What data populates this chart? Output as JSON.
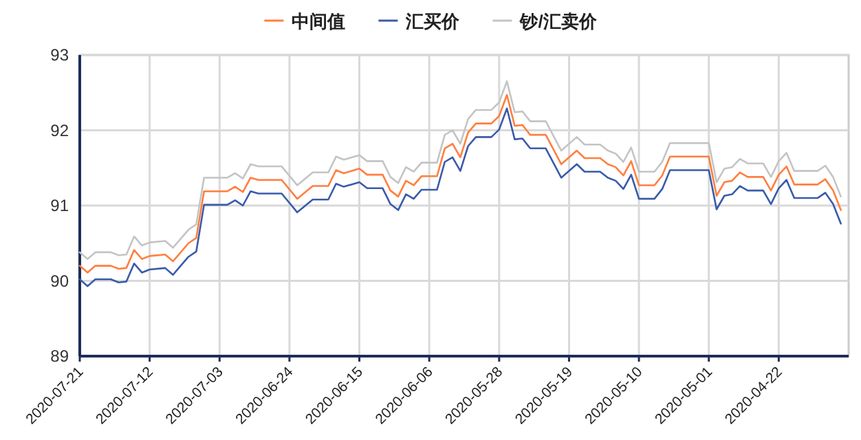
{
  "chart_data": {
    "type": "line",
    "legend": "top",
    "grid": true,
    "x": [
      "2020-07-21",
      "2020-07-20",
      "2020-07-19",
      "2020-07-17",
      "2020-07-16",
      "2020-07-15",
      "2020-07-14",
      "2020-07-13",
      "2020-07-12",
      "2020-07-10",
      "2020-07-09",
      "2020-07-07",
      "2020-07-06",
      "2020-07-05",
      "2020-07-02",
      "2020-07-01",
      "2020-06-30",
      "2020-06-29",
      "2020-06-28",
      "2020-06-25",
      "2020-06-23",
      "2020-06-21",
      "2020-06-19",
      "2020-06-18",
      "2020-06-17",
      "2020-06-15",
      "2020-06-14",
      "2020-06-12",
      "2020-06-11",
      "2020-06-10",
      "2020-06-09",
      "2020-06-08",
      "2020-06-07",
      "2020-06-05",
      "2020-06-04",
      "2020-06-03",
      "2020-06-02",
      "2020-06-01",
      "2020-05-31",
      "2020-05-29",
      "2020-05-28",
      "2020-05-27",
      "2020-05-26",
      "2020-05-25",
      "2020-05-24",
      "2020-05-22",
      "2020-05-20",
      "2020-05-18",
      "2020-05-17",
      "2020-05-15",
      "2020-05-14",
      "2020-05-13",
      "2020-05-12",
      "2020-05-11",
      "2020-05-10",
      "2020-05-08",
      "2020-05-07",
      "2020-05-06",
      "2020-05-01",
      "2020-04-30",
      "2020-04-29",
      "2020-04-28",
      "2020-04-27",
      "2020-04-26",
      "2020-04-24",
      "2020-04-23",
      "2020-04-22",
      "2020-04-21",
      "2020-04-20",
      "2020-04-17",
      "2020-04-16",
      "2020-04-15",
      "2020-04-14"
    ],
    "series": [
      {
        "name": "中间值",
        "color": "#ff7f3f",
        "values": [
          90.2,
          90.11,
          90.2,
          90.2,
          90.16,
          90.17,
          90.41,
          90.29,
          90.33,
          90.35,
          90.26,
          90.5,
          90.57,
          91.19,
          91.19,
          91.25,
          91.18,
          91.37,
          91.34,
          91.34,
          91.09,
          91.26,
          91.26,
          91.47,
          91.43,
          91.49,
          91.41,
          91.41,
          91.2,
          91.12,
          91.33,
          91.27,
          91.39,
          91.39,
          91.76,
          91.82,
          91.64,
          91.97,
          92.09,
          92.09,
          92.19,
          92.47,
          92.06,
          92.07,
          91.94,
          91.94,
          91.55,
          91.73,
          91.63,
          91.63,
          91.55,
          91.51,
          91.4,
          91.59,
          91.27,
          91.27,
          91.4,
          91.65,
          91.65,
          91.13,
          91.31,
          91.33,
          91.44,
          91.38,
          91.38,
          91.2,
          91.41,
          91.52,
          91.28,
          91.28,
          91.35,
          91.2,
          90.94
        ]
      },
      {
        "name": "汇买价",
        "color": "#3a5baa",
        "values": [
          90.02,
          89.93,
          90.02,
          90.02,
          89.98,
          89.99,
          90.23,
          90.11,
          90.15,
          90.17,
          90.08,
          90.32,
          90.39,
          91.01,
          91.01,
          91.07,
          91.0,
          91.19,
          91.16,
          91.16,
          90.91,
          91.08,
          91.08,
          91.29,
          91.25,
          91.31,
          91.23,
          91.23,
          91.02,
          90.94,
          91.15,
          91.09,
          91.21,
          91.21,
          91.58,
          91.64,
          91.46,
          91.79,
          91.91,
          91.91,
          92.01,
          92.29,
          91.88,
          91.89,
          91.76,
          91.76,
          91.37,
          91.55,
          91.45,
          91.45,
          91.37,
          91.33,
          91.22,
          91.41,
          91.09,
          91.09,
          91.22,
          91.47,
          91.47,
          90.95,
          91.13,
          91.15,
          91.26,
          91.2,
          91.2,
          91.02,
          91.23,
          91.34,
          91.1,
          91.1,
          91.17,
          91.02,
          90.76
        ]
      },
      {
        "name": "钞/汇卖价",
        "color": "#c4c4c4",
        "values": [
          90.38,
          90.29,
          90.38,
          90.38,
          90.34,
          90.35,
          90.59,
          90.47,
          90.51,
          90.53,
          90.44,
          90.68,
          90.75,
          91.37,
          91.37,
          91.43,
          91.36,
          91.55,
          91.52,
          91.52,
          91.27,
          91.44,
          91.44,
          91.65,
          91.61,
          91.67,
          91.59,
          91.59,
          91.38,
          91.3,
          91.51,
          91.45,
          91.57,
          91.57,
          91.94,
          92.0,
          91.82,
          92.15,
          92.27,
          92.27,
          92.37,
          92.65,
          92.24,
          92.25,
          92.12,
          92.12,
          91.73,
          91.91,
          91.81,
          91.81,
          91.73,
          91.69,
          91.58,
          91.77,
          91.45,
          91.45,
          91.58,
          91.83,
          91.83,
          91.31,
          91.49,
          91.51,
          91.62,
          91.56,
          91.56,
          91.38,
          91.59,
          91.7,
          91.46,
          91.46,
          91.53,
          91.38,
          91.12
        ]
      }
    ],
    "xlim": [
      "2020-07-21",
      "2020-04-13"
    ],
    "xticks": [
      "2020-07-21",
      "2020-07-12",
      "2020-07-03",
      "2020-06-24",
      "2020-06-15",
      "2020-06-06",
      "2020-05-28",
      "2020-05-19",
      "2020-05-10",
      "2020-05-01",
      "2020-04-22"
    ],
    "ylim": [
      89,
      93
    ],
    "yticks": [
      89,
      90,
      91,
      92,
      93
    ]
  }
}
